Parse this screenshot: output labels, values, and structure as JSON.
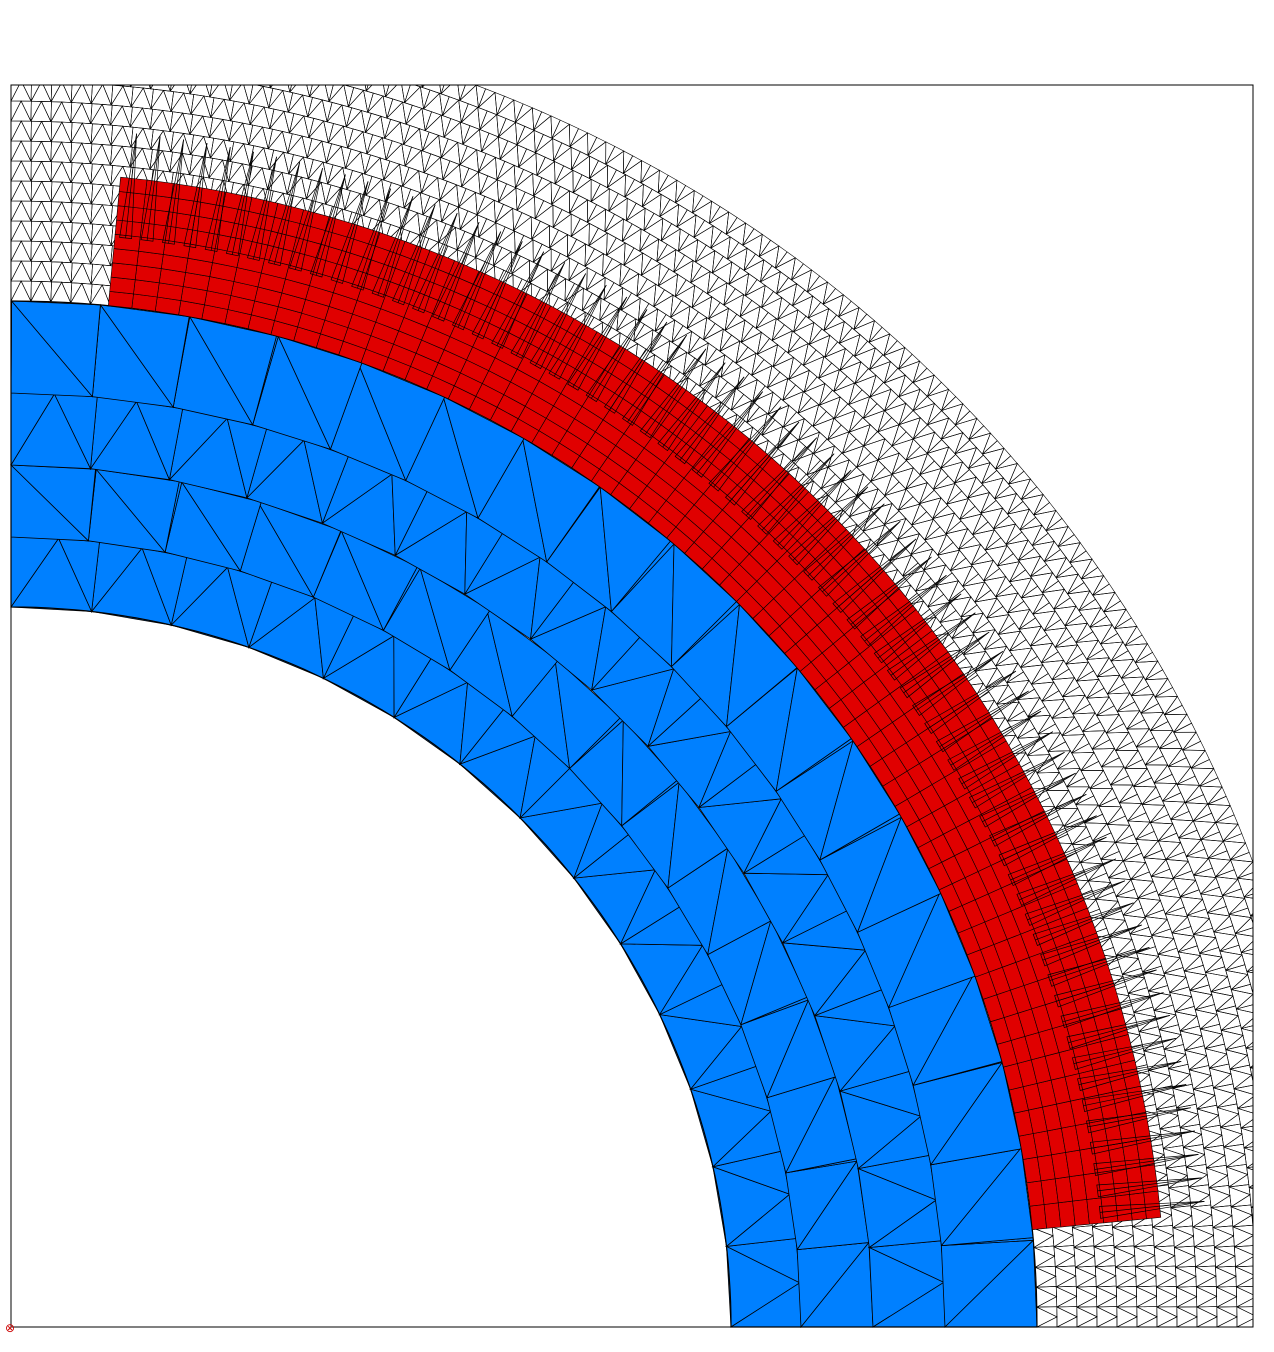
{
  "diagram": {
    "description_kind": "finite-element mesh, quarter annulus cross-section",
    "regions": [
      {
        "name": "inner-core-region",
        "material": "blue",
        "mesh": "coarse-triangular"
      },
      {
        "name": "coil-region",
        "material": "red",
        "mesh": "structured-quadrilateral",
        "radial_layers": 9,
        "angular_divisions": 60
      },
      {
        "name": "air-region",
        "material": "none",
        "mesh": "fine-triangular"
      }
    ],
    "vector_field": {
      "kind": "arrows",
      "direction": "outward-radial"
    },
    "origin_marker": {
      "symbol": "⊗"
    }
  },
  "colors": {
    "core": "#0080ff",
    "coil": "#e00000",
    "mesh_line": "#000000",
    "background": "#ffffff",
    "origin_marker": "#cc0000"
  }
}
